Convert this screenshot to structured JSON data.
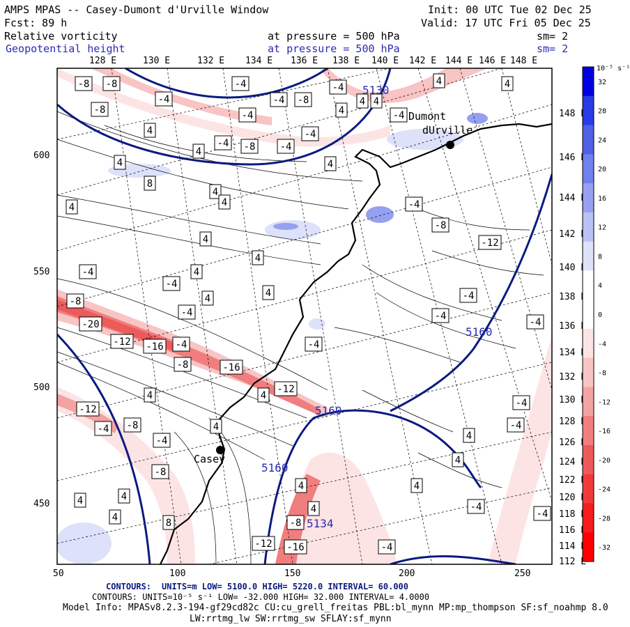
{
  "header": {
    "title": "AMPS MPAS -- Casey-Dumont d'Urville Window",
    "init": "Init: 00 UTC Tue 02 Dec 25",
    "fcst": "Fcst:   89 h",
    "valid": "Valid: 17 UTC Fri 05 Dec 25",
    "fields": [
      {
        "name": "Relative vorticity",
        "level": "at pressure =  500 hPa",
        "sm": "sm= 2",
        "color": "#000000"
      },
      {
        "name": "Geopotential height",
        "level": "at pressure =  500 hPa",
        "sm": "sm= 2",
        "color": "#2b2bb0"
      }
    ]
  },
  "map": {
    "top_longitudes": [
      "128 E",
      "130 E",
      "132 E",
      "134 E",
      "136 E",
      "138 E",
      "140 E",
      "142 E",
      "144 E",
      "146 E",
      "148 E"
    ],
    "right_longitudes": [
      "148 E",
      "146 E",
      "144 E",
      "142 E",
      "140 E",
      "138 E",
      "136 E",
      "134 E",
      "132 E",
      "130 E",
      "128 E",
      "126 E",
      "124 E",
      "122 E",
      "120 E",
      "118 E",
      "116 E",
      "114 E",
      "112 E"
    ],
    "x_ticks": [
      "50",
      "100",
      "150",
      "200",
      "250"
    ],
    "y_ticks": [
      "600",
      "550",
      "500",
      "450"
    ],
    "stations": [
      {
        "name": "Casey",
        "label": "Casey"
      },
      {
        "name": "Dumont",
        "label_line1": "Dumont",
        "label_line2": "dUrville"
      }
    ],
    "height_labels": [
      "5130",
      "5160",
      "5160",
      "5160",
      "5134"
    ],
    "vorticity_labels": [
      "-8",
      "-8",
      "-4",
      "-4",
      "-4",
      "4",
      "-4",
      "-8",
      "-8",
      "4",
      "-4",
      "-4",
      "-4",
      "-4",
      "-8",
      "-4",
      "4",
      "4",
      "8",
      "4",
      "4",
      "4",
      "4",
      "4",
      "4",
      "4",
      "-4",
      "4",
      "4",
      "-4",
      "-4",
      "-8",
      "-20",
      "-12",
      "-16",
      "-4",
      "-8",
      "-16",
      "-12",
      "-4",
      "4",
      "4",
      "-12",
      "-4",
      "-8",
      "-4",
      "-8",
      "4",
      "4",
      "4",
      "8",
      "4",
      "-8",
      "-16",
      "-12",
      "4",
      "-4",
      "4",
      "4",
      "4",
      "-4",
      "-4",
      "-4",
      "-4",
      "-4",
      "-4",
      "-4",
      "-12",
      "-8",
      "-4",
      "4",
      "4",
      "4",
      "4",
      "4"
    ]
  },
  "colorbar": {
    "unit": "10⁻⁵ s⁻¹",
    "labels": [
      "32",
      "28",
      "24",
      "20",
      "16",
      "12",
      "8",
      "4",
      "0",
      "-4",
      "-8",
      "-12",
      "-16",
      "-20",
      "-24",
      "-28",
      "-32"
    ],
    "colors": [
      "#0000e0",
      "#2a3be6",
      "#4f5fe6",
      "#7080ec",
      "#96a0f0",
      "#b8c0f4",
      "#dde1fa",
      "#ffffff",
      "#ffffff",
      "#fde4e4",
      "#f8c4c4",
      "#f4a2a2",
      "#f07e7e",
      "#ec5a5a",
      "#f03a3a",
      "#f41c1c",
      "#ff0000"
    ]
  },
  "footer": {
    "line1_label": "CONTOURS:",
    "line1": "UNITS=m  LOW=  5100.0       HIGH=  5220.0        INTERVAL=   60.000",
    "line2": "CONTOURS:  UNITS=10⁻⁵ s⁻¹  LOW= -32.000       HIGH=  32.000       INTERVAL=   4.0000",
    "model_info": "Model Info: MPASv8.2.3-194-gf29cd82c CU:cu_grell_freitas PBL:bl_mynn MP:mp_thompson SF:sf_noahmp 8.0",
    "model_info2": "LW:rrtmg_lw SW:rrtmg_sw SFLAY:sf_mynn"
  }
}
